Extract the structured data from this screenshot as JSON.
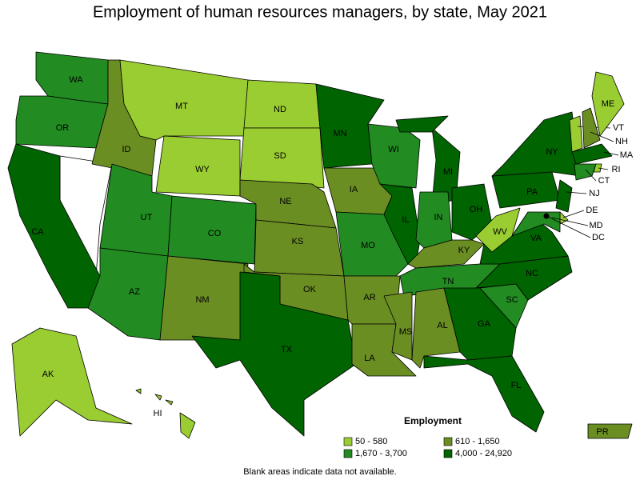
{
  "title": "Employment of human resources managers, by state, May 2021",
  "legend": {
    "title": "Employment",
    "items": [
      {
        "label": "50 - 580",
        "color": "#9acd32"
      },
      {
        "label": "610 - 1,650",
        "color": "#6b8e23"
      },
      {
        "label": "1,670 - 3,700",
        "color": "#228b22"
      },
      {
        "label": "4,000 - 24,920",
        "color": "#006400"
      }
    ]
  },
  "states": [
    {
      "abbr": "WA",
      "level": 2
    },
    {
      "abbr": "OR",
      "level": 2
    },
    {
      "abbr": "CA",
      "level": 3
    },
    {
      "abbr": "ID",
      "level": 1
    },
    {
      "abbr": "MT",
      "level": 0
    },
    {
      "abbr": "WY",
      "level": 0
    },
    {
      "abbr": "UT",
      "level": 2
    },
    {
      "abbr": "CO",
      "level": 2
    },
    {
      "abbr": "AZ",
      "level": 2
    },
    {
      "abbr": "NM",
      "level": 1
    },
    {
      "abbr": "ND",
      "level": 0
    },
    {
      "abbr": "SD",
      "level": 0
    },
    {
      "abbr": "NE",
      "level": 1
    },
    {
      "abbr": "KS",
      "level": 1
    },
    {
      "abbr": "OK",
      "level": 1
    },
    {
      "abbr": "TX",
      "level": 3
    },
    {
      "abbr": "MN",
      "level": 3
    },
    {
      "abbr": "IA",
      "level": 1
    },
    {
      "abbr": "MO",
      "level": 2
    },
    {
      "abbr": "AR",
      "level": 1
    },
    {
      "abbr": "LA",
      "level": 1
    },
    {
      "abbr": "WI",
      "level": 2
    },
    {
      "abbr": "IL",
      "level": 3
    },
    {
      "abbr": "MI",
      "level": 3
    },
    {
      "abbr": "IN",
      "level": 2
    },
    {
      "abbr": "OH",
      "level": 3
    },
    {
      "abbr": "KY",
      "level": 1
    },
    {
      "abbr": "TN",
      "level": 2
    },
    {
      "abbr": "MS",
      "level": 1
    },
    {
      "abbr": "AL",
      "level": 1
    },
    {
      "abbr": "GA",
      "level": 3
    },
    {
      "abbr": "FL",
      "level": 3
    },
    {
      "abbr": "SC",
      "level": 2
    },
    {
      "abbr": "NC",
      "level": 3
    },
    {
      "abbr": "VA",
      "level": 3
    },
    {
      "abbr": "WV",
      "level": 0
    },
    {
      "abbr": "PA",
      "level": 3
    },
    {
      "abbr": "NY",
      "level": 3
    },
    {
      "abbr": "VT",
      "level": 0
    },
    {
      "abbr": "NH",
      "level": 1
    },
    {
      "abbr": "ME",
      "level": 0
    },
    {
      "abbr": "MA",
      "level": 3
    },
    {
      "abbr": "CT",
      "level": 2
    },
    {
      "abbr": "RI",
      "level": 0
    },
    {
      "abbr": "NJ",
      "level": 3
    },
    {
      "abbr": "DE",
      "level": 0
    },
    {
      "abbr": "MD",
      "level": 2
    },
    {
      "abbr": "DC",
      "level": 3
    },
    {
      "abbr": "AK",
      "level": 0
    },
    {
      "abbr": "HI",
      "level": 0
    },
    {
      "abbr": "PR",
      "level": 1
    }
  ],
  "note": "Blank areas indicate data not available."
}
